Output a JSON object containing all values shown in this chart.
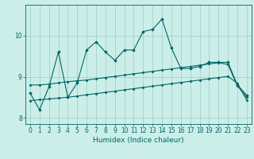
{
  "xlabel": "Humidex (Indice chaleur)",
  "background_color": "#cceee8",
  "line_color": "#006666",
  "x": [
    0,
    1,
    2,
    3,
    4,
    5,
    6,
    7,
    8,
    9,
    10,
    11,
    12,
    13,
    14,
    15,
    16,
    17,
    18,
    19,
    20,
    21,
    22,
    23
  ],
  "line1": [
    8.6,
    8.2,
    8.75,
    9.6,
    8.5,
    8.85,
    9.65,
    9.85,
    9.6,
    9.4,
    9.65,
    9.65,
    10.1,
    10.15,
    10.4,
    9.7,
    9.2,
    9.2,
    9.25,
    9.35,
    9.35,
    9.35,
    8.8,
    8.55
  ],
  "line2": [
    8.8,
    8.8,
    8.82,
    8.85,
    8.88,
    8.9,
    8.92,
    8.95,
    8.98,
    9.01,
    9.04,
    9.07,
    9.1,
    9.13,
    9.16,
    9.19,
    9.22,
    9.25,
    9.28,
    9.31,
    9.34,
    9.3,
    8.78,
    8.5
  ],
  "line3": [
    8.42,
    8.44,
    8.46,
    8.48,
    8.5,
    8.53,
    8.56,
    8.59,
    8.62,
    8.65,
    8.68,
    8.71,
    8.74,
    8.77,
    8.8,
    8.83,
    8.86,
    8.89,
    8.92,
    8.95,
    8.98,
    9.01,
    8.84,
    8.43
  ],
  "ylim": [
    7.85,
    10.75
  ],
  "yticks": [
    8,
    9,
    10
  ],
  "xticks": [
    0,
    1,
    2,
    3,
    4,
    5,
    6,
    7,
    8,
    9,
    10,
    11,
    12,
    13,
    14,
    15,
    16,
    17,
    18,
    19,
    20,
    21,
    22,
    23
  ],
  "grid_color": "#99cccc",
  "font_color": "#006666",
  "tick_fontsize": 5.5,
  "xlabel_fontsize": 6.5
}
